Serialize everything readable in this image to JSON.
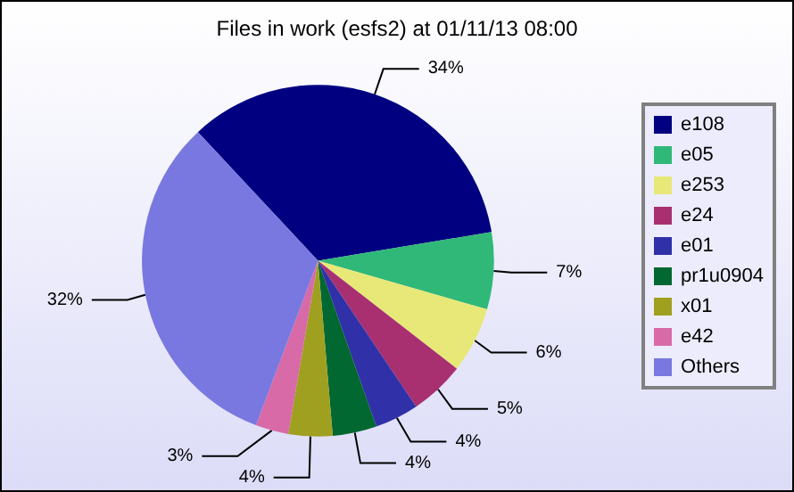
{
  "chart_data": {
    "type": "pie",
    "title": "Files in work (esfs2) at 01/11/13 08:00",
    "categories": [
      "e108",
      "e05",
      "e253",
      "e24",
      "e01",
      "pr1u0904",
      "x01",
      "e42",
      "Others"
    ],
    "values": [
      34,
      7,
      6,
      5,
      4,
      4,
      4,
      3,
      32
    ],
    "value_labels": [
      "34%",
      "7%",
      "6%",
      "5%",
      "4%",
      "4%",
      "4%",
      "3%",
      "32%"
    ],
    "colors": [
      "#000080",
      "#30b878",
      "#e8e878",
      "#a83070",
      "#3030a8",
      "#006830",
      "#a0a020",
      "#d86aa8",
      "#7878e0"
    ],
    "legend": "right"
  }
}
